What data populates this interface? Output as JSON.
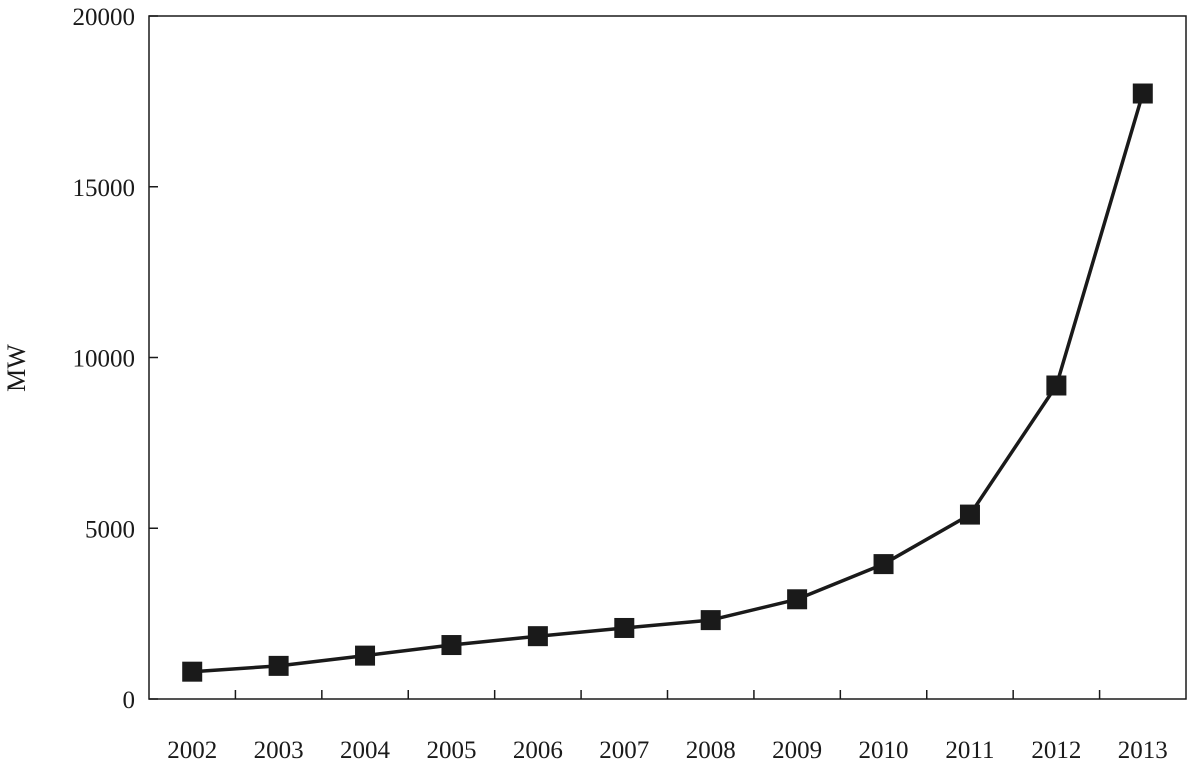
{
  "chart_data": {
    "type": "line",
    "title": "",
    "xlabel": "",
    "ylabel": "MW",
    "categories": [
      "2002",
      "2003",
      "2004",
      "2005",
      "2006",
      "2007",
      "2008",
      "2009",
      "2010",
      "2011",
      "2012",
      "2013"
    ],
    "series": [
      {
        "values": [
          800,
          970,
          1270,
          1580,
          1840,
          2080,
          2310,
          2920,
          3950,
          5400,
          9180,
          17730
        ],
        "color": "#1a1a1a",
        "marker": "square"
      }
    ],
    "y_ticks": [
      "0",
      "5000",
      "10000",
      "15000",
      "20000"
    ],
    "ylim": [
      0,
      20000
    ],
    "grid": false,
    "legend": "none"
  }
}
